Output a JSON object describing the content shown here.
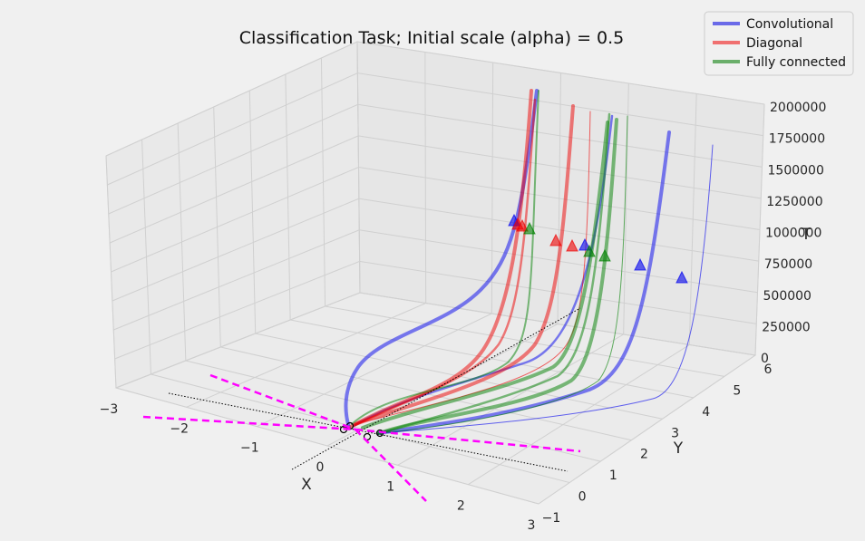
{
  "chart_data": {
    "type": "line",
    "projection": "3d",
    "title": "Classification Task; Initial scale (alpha) = 0.5",
    "xlabel": "X",
    "ylabel": "Y",
    "zlabel": "T",
    "xlim": [
      -3,
      3
    ],
    "ylim": [
      -1,
      6
    ],
    "zlim": [
      0,
      2000000
    ],
    "x_ticks": [
      "−3",
      "−2",
      "−1",
      "0",
      "1",
      "2",
      "3"
    ],
    "y_ticks": [
      "−1",
      "0",
      "1",
      "2",
      "3",
      "4",
      "5",
      "6"
    ],
    "z_ticks": [
      "0",
      "250000",
      "500000",
      "750000",
      "1000000",
      "1250000",
      "1500000",
      "1750000",
      "2000000"
    ],
    "grid": true,
    "legend_position": "top-right",
    "series": [
      {
        "name": "Convolutional",
        "color": "#0000ee"
      },
      {
        "name": "Diagonal",
        "color": "#ee0000"
      },
      {
        "name": "Fully connected",
        "color": "#008000"
      }
    ],
    "marker_color": "#ff00ff"
  }
}
